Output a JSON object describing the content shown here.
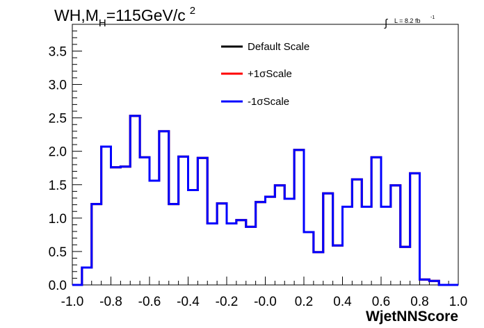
{
  "title": {
    "prefix": "WH,M",
    "subscript": "H",
    "middle": "=115GeV/c",
    "superscript": "2"
  },
  "luminosity": {
    "symbol": "∫",
    "text": "L = 8.2 fb",
    "exponent": "-1"
  },
  "chart_data": {
    "type": "line",
    "style": "step-histogram",
    "xlabel": "WjetNNScore",
    "ylabel": "",
    "xlim": [
      -1.0,
      1.0
    ],
    "ylim": [
      0.0,
      3.9
    ],
    "x_ticks": [
      "-1.0",
      "-0.8",
      "-0.6",
      "-0.4",
      "-0.2",
      "-0.0",
      "0.2",
      "0.4",
      "0.6",
      "0.8",
      "1.0"
    ],
    "y_ticks": [
      "0.0",
      "0.5",
      "1.0",
      "1.5",
      "2.0",
      "2.5",
      "3.0",
      "3.5"
    ],
    "grid": false,
    "legend_position": "top-center",
    "bin_edges": [
      -1.0,
      -0.95,
      -0.9,
      -0.85,
      -0.8,
      -0.75,
      -0.7,
      -0.65,
      -0.6,
      -0.55,
      -0.5,
      -0.45,
      -0.4,
      -0.35,
      -0.3,
      -0.25,
      -0.2,
      -0.15,
      -0.1,
      -0.05,
      0.0,
      0.05,
      0.1,
      0.15,
      0.2,
      0.25,
      0.3,
      0.35,
      0.4,
      0.45,
      0.5,
      0.55,
      0.6,
      0.65,
      0.7,
      0.75,
      0.8,
      0.85,
      0.9,
      0.95,
      1.0
    ],
    "series": [
      {
        "name": "Default Scale",
        "color": "#000000",
        "values": [
          0.0,
          0.26,
          1.21,
          2.07,
          1.76,
          1.77,
          2.53,
          1.91,
          1.56,
          2.3,
          1.21,
          1.92,
          1.42,
          1.9,
          0.92,
          1.22,
          0.92,
          0.97,
          0.87,
          1.24,
          1.32,
          1.49,
          1.29,
          2.02,
          0.79,
          0.49,
          1.37,
          0.59,
          1.17,
          1.58,
          1.17,
          1.91,
          1.17,
          1.49,
          0.57,
          1.67,
          0.08,
          0.06,
          0.0,
          0.0
        ]
      },
      {
        "name": "+1σScale",
        "color": "#ff0000",
        "values": [
          0.0,
          0.26,
          1.21,
          2.07,
          1.76,
          1.77,
          2.53,
          1.91,
          1.56,
          2.3,
          1.21,
          1.92,
          1.42,
          1.9,
          0.92,
          1.22,
          0.92,
          0.97,
          0.87,
          1.24,
          1.32,
          1.49,
          1.29,
          2.02,
          0.79,
          0.49,
          1.37,
          0.59,
          1.17,
          1.58,
          1.17,
          1.91,
          1.17,
          1.49,
          0.57,
          1.67,
          0.08,
          0.06,
          0.0,
          0.0
        ]
      },
      {
        "name": "-1σScale",
        "color": "#0000ff",
        "values": [
          0.0,
          0.26,
          1.21,
          2.07,
          1.76,
          1.77,
          2.53,
          1.91,
          1.56,
          2.3,
          1.21,
          1.92,
          1.42,
          1.9,
          0.92,
          1.22,
          0.92,
          0.97,
          0.87,
          1.24,
          1.32,
          1.49,
          1.29,
          2.02,
          0.79,
          0.49,
          1.37,
          0.59,
          1.17,
          1.58,
          1.17,
          1.91,
          1.17,
          1.49,
          0.57,
          1.67,
          0.08,
          0.06,
          0.0,
          0.0
        ]
      }
    ]
  }
}
